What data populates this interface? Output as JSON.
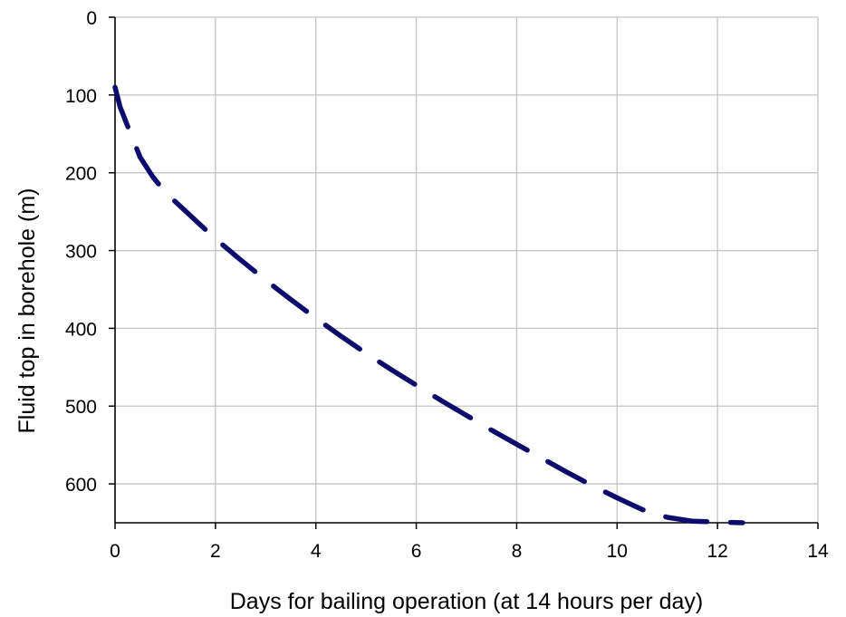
{
  "chart_data": {
    "type": "line",
    "title": "",
    "xlabel": "Days for bailing operation (at 14 hours per day)",
    "ylabel": "Fluid top in borehole (m)",
    "xlim": [
      0,
      14
    ],
    "ylim": [
      0,
      650
    ],
    "y_inverted": true,
    "x_ticks": [
      0,
      2,
      4,
      6,
      8,
      10,
      12,
      14
    ],
    "y_ticks": [
      0,
      100,
      200,
      300,
      400,
      500,
      600
    ],
    "x_tick_labels": [
      "0",
      "2",
      "4",
      "6",
      "8",
      "10",
      "12",
      "14"
    ],
    "y_tick_labels": [
      "0",
      "100",
      "200",
      "300",
      "400",
      "500",
      "600"
    ],
    "grid": true,
    "legend": "none",
    "series": [
      {
        "color": "#0c0c6e",
        "line_style": "dashed",
        "x": [
          0,
          0.1,
          0.25,
          0.5,
          0.75,
          1,
          1.5,
          2,
          2.5,
          3,
          3.5,
          4,
          4.5,
          5,
          5.5,
          6,
          6.5,
          7,
          7.5,
          8,
          8.5,
          9,
          9.5,
          10,
          10.5,
          11,
          11.5,
          12,
          12.5
        ],
        "y": [
          90,
          115,
          140,
          180,
          205,
          225,
          255,
          285,
          312,
          338,
          363,
          387,
          410,
          432,
          453,
          473,
          493,
          512,
          531,
          549,
          567,
          585,
          602,
          618,
          633,
          643,
          648,
          649,
          650
        ]
      }
    ]
  }
}
